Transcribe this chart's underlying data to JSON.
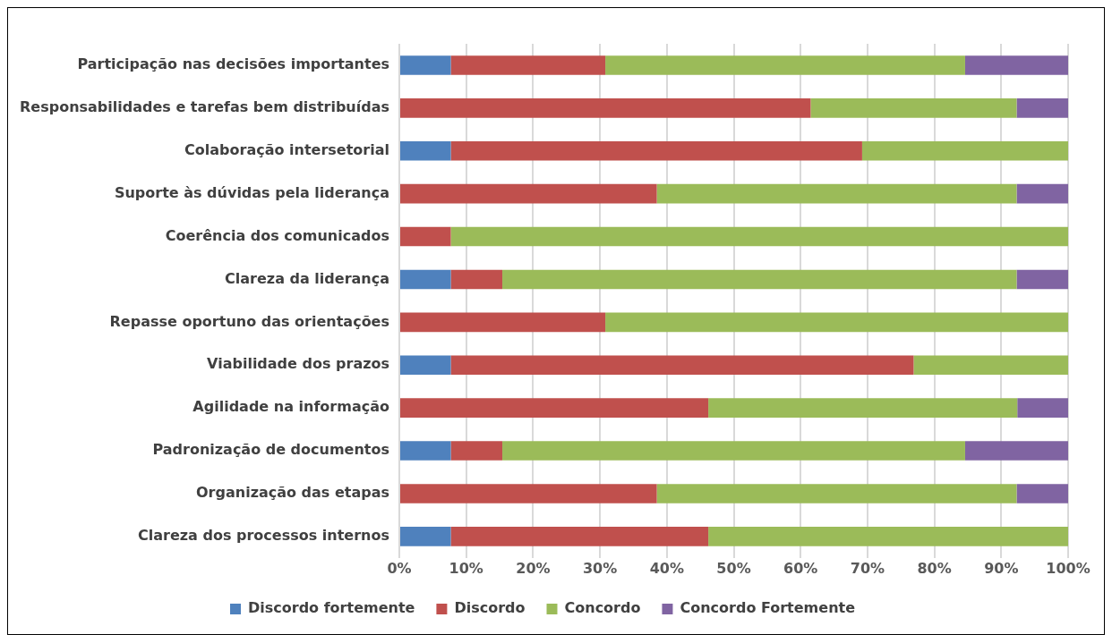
{
  "chart_data": {
    "type": "bar",
    "orientation": "horizontal",
    "stacked": true,
    "categories": [
      "Participação nas decisões importantes",
      "Responsabilidades e tarefas bem distribuídas",
      "Colaboração intersetorial",
      "Suporte às dúvidas pela liderança",
      "Coerência dos comunicados",
      "Clareza da liderança",
      "Repasse oportuno das orientações",
      "Viabilidade dos prazos",
      "Agilidade na informação",
      "Padronização de documentos",
      "Organização das etapas",
      "Clareza dos processos internos"
    ],
    "series": [
      {
        "name": "Discordo fortemente",
        "color": "#4f81bd",
        "values": [
          7.7,
          0,
          7.7,
          0,
          0,
          7.7,
          0,
          7.7,
          0,
          7.7,
          0,
          7.7
        ]
      },
      {
        "name": "Discordo",
        "color": "#c0504d",
        "values": [
          23.1,
          61.5,
          61.5,
          38.5,
          7.7,
          7.7,
          30.8,
          69.2,
          46.2,
          7.7,
          38.5,
          38.5
        ]
      },
      {
        "name": "Concordo",
        "color": "#9bbb59",
        "values": [
          53.8,
          30.8,
          30.8,
          53.8,
          92.3,
          76.9,
          69.2,
          23.1,
          46.2,
          69.2,
          53.8,
          53.8
        ]
      },
      {
        "name": "Concordo Fortemente",
        "color": "#8064a2",
        "values": [
          15.4,
          7.7,
          0,
          7.7,
          0,
          7.7,
          0,
          0,
          7.7,
          15.4,
          7.7,
          0
        ]
      }
    ],
    "xlim": [
      0,
      100
    ],
    "xticks": [
      {
        "value": 0,
        "label": "0%"
      },
      {
        "value": 10,
        "label": "10%"
      },
      {
        "value": 20,
        "label": "20%"
      },
      {
        "value": 30,
        "label": "30%"
      },
      {
        "value": 40,
        "label": "40%"
      },
      {
        "value": 50,
        "label": "50%"
      },
      {
        "value": 60,
        "label": "60%"
      },
      {
        "value": 70,
        "label": "70%"
      },
      {
        "value": 80,
        "label": "80%"
      },
      {
        "value": 90,
        "label": "90%"
      },
      {
        "value": 100,
        "label": "100%"
      }
    ],
    "grid": "x",
    "legend": "bottom"
  }
}
